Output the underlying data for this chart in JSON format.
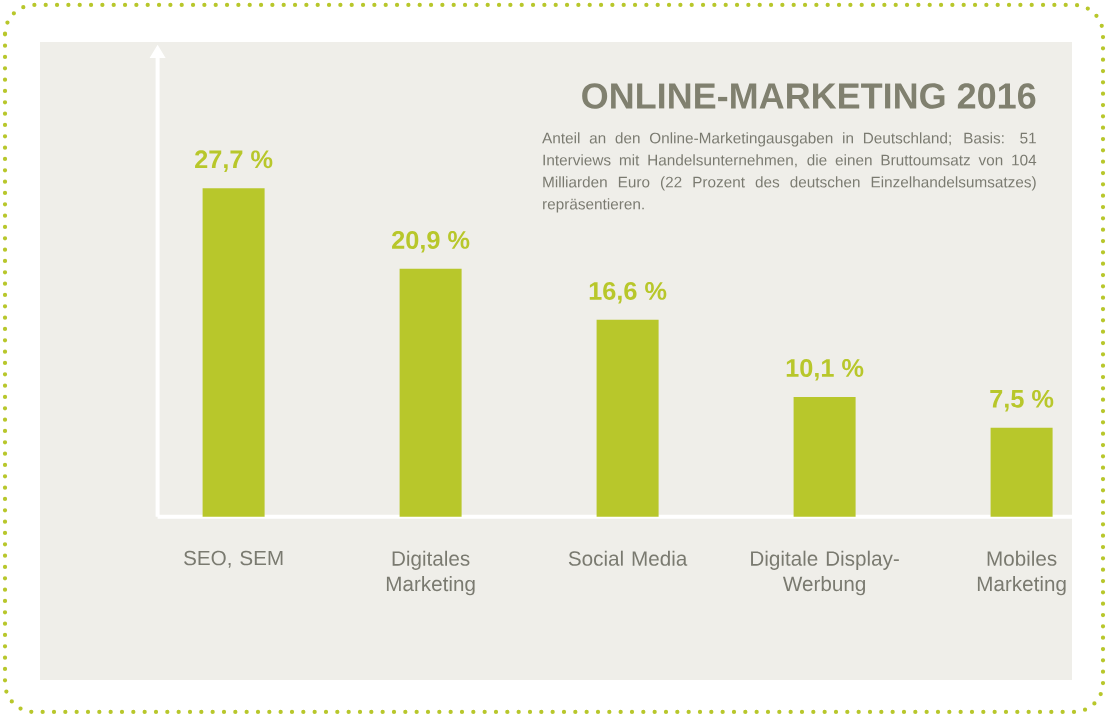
{
  "chart_data": {
    "type": "bar",
    "title": "ONLINE-MARKETING 2016",
    "subtitle": "Anteil an den Online-Marketingausgaben in Deutschland; Basis: 51 Interviews mit Handelsunternehmen, die einen Bruttoumsatz von 104 Milliarden Euro (22 Prozent des deutschen Einzelhandelsumsatzes) repräsentieren.",
    "categories": [
      "SEO, SEM",
      "Digitales Marketing",
      "Social Media",
      "Digitale Display-Werbung",
      "Mobiles Marketing"
    ],
    "values": [
      27.7,
      20.9,
      16.6,
      10.1,
      7.5
    ],
    "value_labels": [
      "27,7 %",
      "20,9 %",
      "16,6 %",
      "10,1 %",
      "7,5 %"
    ],
    "color": "#b8c72b",
    "ylim": [
      0,
      38.8
    ]
  }
}
